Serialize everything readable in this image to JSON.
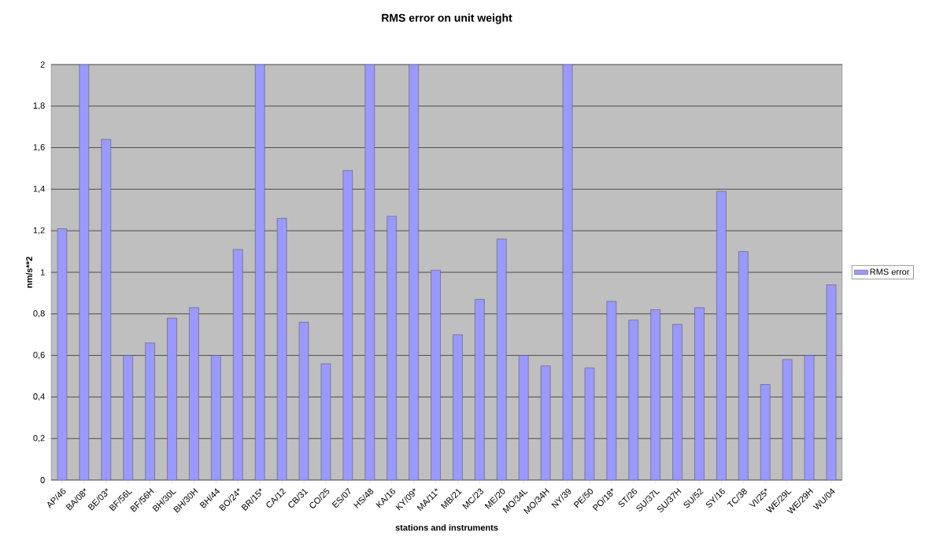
{
  "chart_data": {
    "type": "bar",
    "title": "RMS error on unit weight",
    "xlabel": "stations and instruments",
    "ylabel": "nm/s**2",
    "categories": [
      "AP/46",
      "BA/08*",
      "BE/03*",
      "BF/56L",
      "BF/56H",
      "BH/30L",
      "BH/30H",
      "BH/44",
      "BO/24*",
      "BR/15*",
      "CA/12",
      "CB/31",
      "CO/25",
      "ES/07",
      "HS/48",
      "KA/16",
      "KY/09*",
      "MA/11*",
      "MB/21",
      "MC/23",
      "ME/20",
      "MO/34L",
      "MO/34H",
      "NY/39",
      "PE/50",
      "PO/18*",
      "ST/26",
      "SU/37L",
      "SU/37H",
      "SU/52",
      "SY/16",
      "TC/38",
      "VI/25*",
      "WE/29L",
      "WE/29H",
      "WU/04"
    ],
    "series": [
      {
        "name": "RMS error",
        "color": "#9999ff",
        "values": [
          1.21,
          2,
          1.64,
          0.6,
          0.66,
          0.78,
          0.83,
          0.6,
          1.11,
          2,
          1.26,
          0.76,
          0.56,
          1.49,
          2,
          1.27,
          2,
          1.01,
          0.7,
          0.87,
          1.16,
          0.6,
          0.55,
          2,
          0.54,
          0.86,
          0.77,
          0.82,
          0.75,
          0.83,
          1.39,
          1.1,
          0.46,
          0.58,
          0.6,
          0.94
        ]
      }
    ],
    "ylim": [
      0,
      2
    ],
    "yticks": [
      0,
      {
        "value": 0.2,
        "label": "0,2"
      },
      {
        "value": 0.4,
        "label": "0,4"
      },
      {
        "value": 0.6,
        "label": "0,6"
      },
      {
        "value": 0.8,
        "label": "0,8"
      },
      1,
      {
        "value": 1.2,
        "label": "1,2"
      },
      {
        "value": 1.4,
        "label": "1,4"
      },
      {
        "value": 1.6,
        "label": "1,6"
      },
      {
        "value": 1.8,
        "label": "1,8"
      },
      2
    ],
    "grid": "y",
    "legend": "right"
  }
}
